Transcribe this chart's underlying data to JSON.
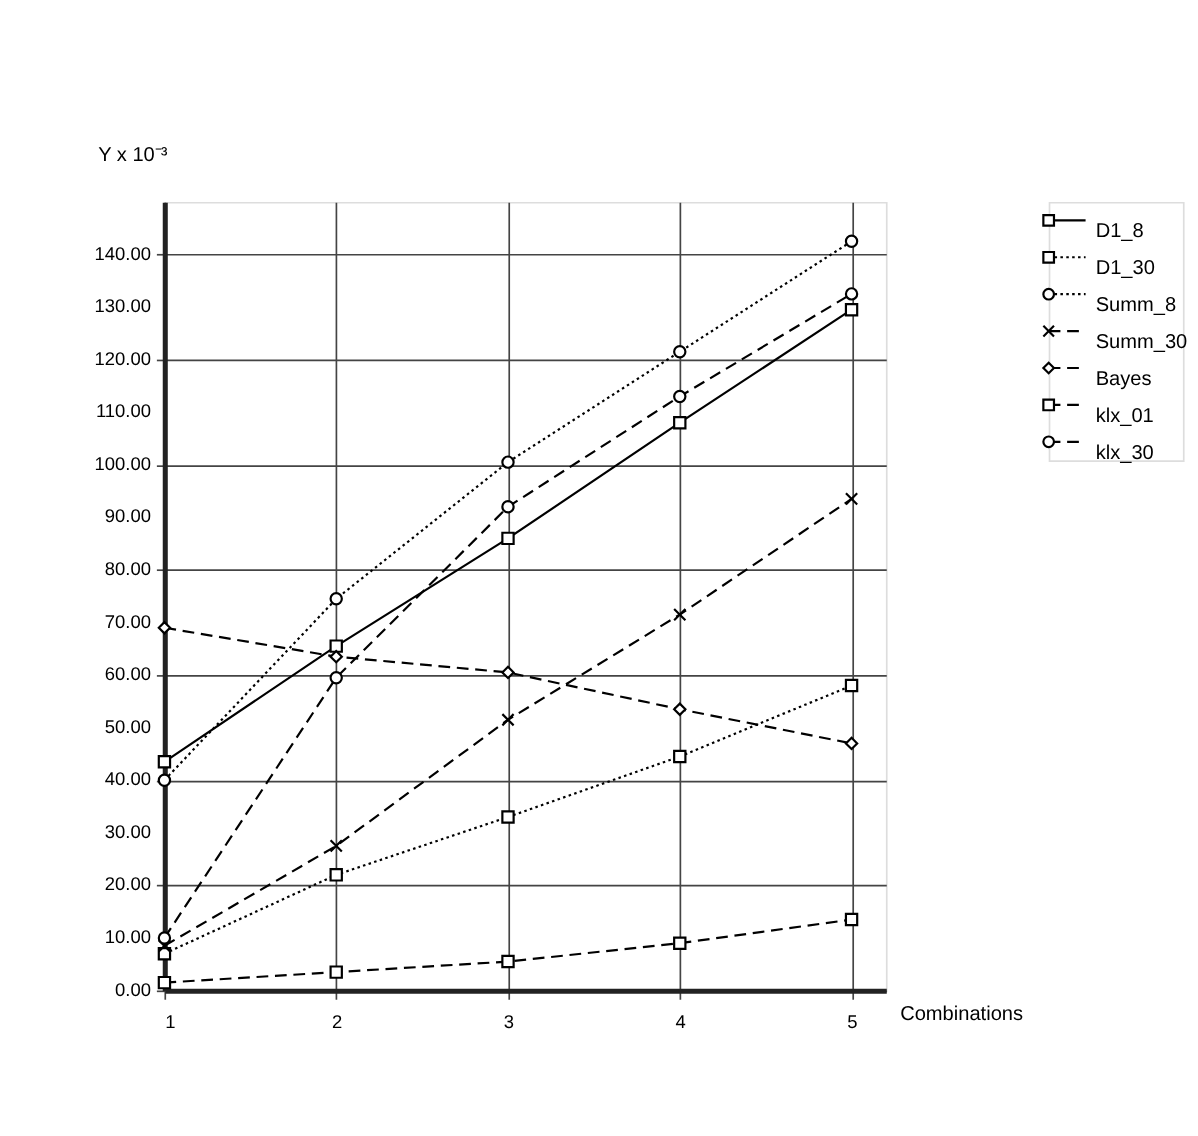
{
  "chart_data": {
    "type": "line",
    "xlabel": "Combinations",
    "ylabel": "Y x 10⁻³",
    "x": [
      1,
      2,
      3,
      4,
      5
    ],
    "xlim": [
      1,
      5.2
    ],
    "xticks": [
      1,
      2,
      3,
      4,
      5
    ],
    "ylim": [
      0,
      150
    ],
    "yticks": [
      {
        "value": 0,
        "label": "0.00"
      },
      {
        "value": 10,
        "label": "10.00"
      },
      {
        "value": 20,
        "label": "20.00"
      },
      {
        "value": 30,
        "label": "30.00"
      },
      {
        "value": 40,
        "label": "40.00"
      },
      {
        "value": 50,
        "label": "50.00"
      },
      {
        "value": 60,
        "label": "60.00"
      },
      {
        "value": 70,
        "label": "70.00"
      },
      {
        "value": 80,
        "label": "80.00"
      },
      {
        "value": 90,
        "label": "90.00"
      },
      {
        "value": 100,
        "label": "100.00"
      },
      {
        "value": 110,
        "label": "110.00"
      },
      {
        "value": 120,
        "label": "120.00"
      },
      {
        "value": 130,
        "label": "130.00"
      },
      {
        "value": 140,
        "label": "140.00"
      }
    ],
    "grid": true,
    "legend": "top right",
    "series": [
      {
        "name": "D1_8",
        "color": "#000000",
        "marker": "square",
        "line_style": "solid",
        "values": [
          43.5,
          65.5,
          86,
          108,
          129.5
        ]
      },
      {
        "name": "D1_30",
        "color": "#000000",
        "marker": "square",
        "line_style": "dotted",
        "values": [
          7,
          22,
          33,
          44.5,
          58
        ]
      },
      {
        "name": "Summ_8",
        "color": "#000000",
        "marker": "circle",
        "line_style": "dotted",
        "values": [
          40,
          74.5,
          100.5,
          121.5,
          142.5
        ]
      },
      {
        "name": "Summ_30",
        "color": "#000000",
        "marker": "cross",
        "line_style": "dashed",
        "values": [
          8.5,
          27.5,
          51.5,
          71.5,
          93.5
        ]
      },
      {
        "name": "Bayes",
        "color": "#000000",
        "marker": "diamond",
        "line_style": "dashed",
        "values": [
          69,
          63.5,
          60.5,
          53.5,
          47
        ]
      },
      {
        "name": "klx_01",
        "color": "#000000",
        "marker": "square",
        "line_style": "dashed",
        "values": [
          1.5,
          3.5,
          5.5,
          9,
          13.5
        ]
      },
      {
        "name": "klx_30",
        "color": "#000000",
        "marker": "circle",
        "line_style": "dashed",
        "values": [
          10,
          59.5,
          92,
          113,
          132.5
        ]
      }
    ]
  }
}
